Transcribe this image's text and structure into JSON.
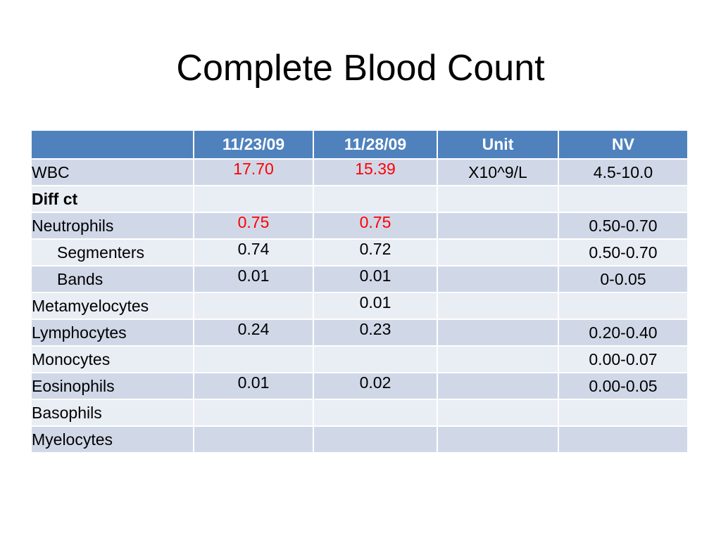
{
  "title": "Complete Blood Count",
  "table": {
    "headers": [
      "",
      "11/23/09",
      "11/28/09",
      "Unit",
      "NV"
    ],
    "rows": [
      {
        "label": "WBC",
        "v1": "17.70",
        "v2": "15.39",
        "unit": "X10^9/L",
        "nv": "4.5-10.0",
        "abnormal": true
      },
      {
        "label": "Diff ct",
        "v1": "",
        "v2": "",
        "unit": "",
        "nv": "",
        "bold": true
      },
      {
        "label": "Neutrophils",
        "v1": "0.75",
        "v2": "0.75",
        "unit": "",
        "nv": "0.50-0.70",
        "abnormal": true
      },
      {
        "label": "Segmenters",
        "v1": "0.74",
        "v2": "0.72",
        "unit": "",
        "nv": "0.50-0.70",
        "indent": true
      },
      {
        "label": "Bands",
        "v1": "0.01",
        "v2": "0.01",
        "unit": "",
        "nv": "0-0.05",
        "indent": true
      },
      {
        "label": "Metamyelocytes",
        "v1": "",
        "v2": "0.01",
        "unit": "",
        "nv": ""
      },
      {
        "label": "Lymphocytes",
        "v1": "0.24",
        "v2": "0.23",
        "unit": "",
        "nv": "0.20-0.40"
      },
      {
        "label": "Monocytes",
        "v1": "",
        "v2": "",
        "unit": "",
        "nv": "0.00-0.07"
      },
      {
        "label": "Eosinophils",
        "v1": "0.01",
        "v2": "0.02",
        "unit": "",
        "nv": "0.00-0.05"
      },
      {
        "label": "Basophils",
        "v1": "",
        "v2": "",
        "unit": "",
        "nv": ""
      },
      {
        "label": "Myelocytes",
        "v1": "",
        "v2": "",
        "unit": "",
        "nv": ""
      }
    ]
  },
  "colors": {
    "header_bg": "#4f81bd",
    "row_band_dark": "#d0d8e8",
    "row_band_light": "#e9edf4",
    "abnormal_value": "#ff0000"
  }
}
